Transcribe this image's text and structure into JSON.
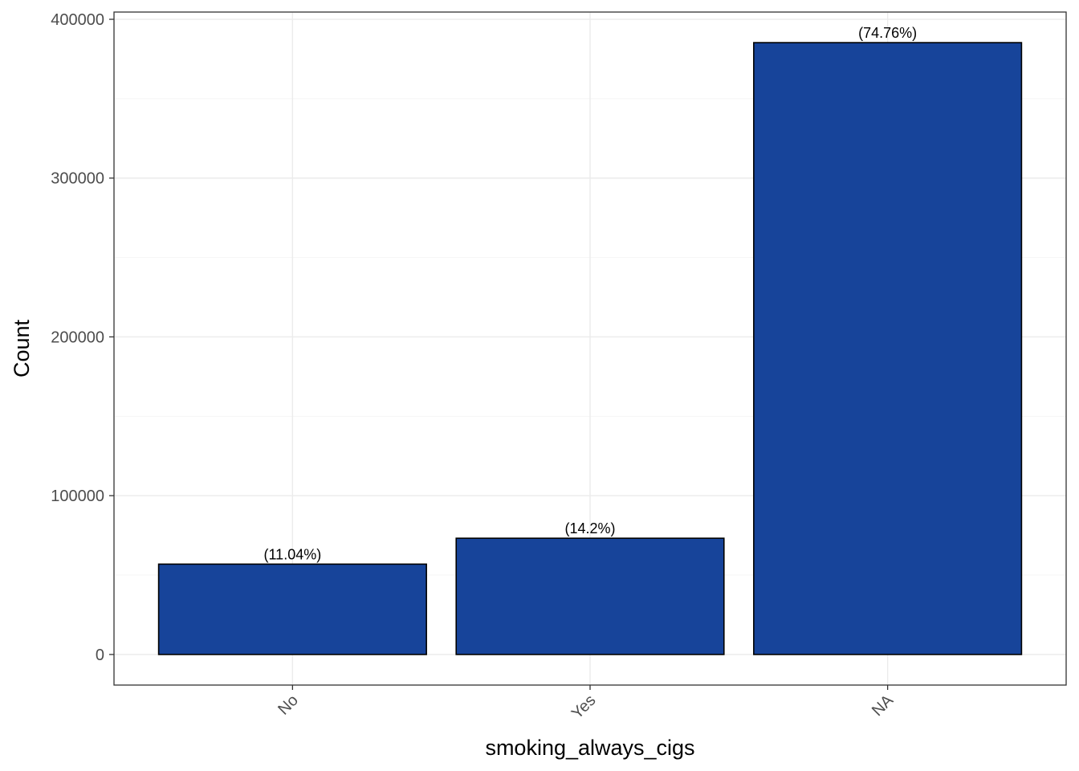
{
  "chart_data": {
    "type": "bar",
    "title": "",
    "xlabel": "smoking_always_cigs",
    "ylabel": "Count",
    "categories": [
      "No",
      "Yes",
      "NA"
    ],
    "values": [
      56900,
      73200,
      385300
    ],
    "data_labels": [
      "(11.04%)",
      "(14.2%)",
      "(74.76%)"
    ],
    "ylim": [
      -19265,
      404565
    ],
    "yticks": [
      0,
      100000,
      200000,
      300000,
      400000
    ],
    "ytick_labels": [
      "0",
      "100000",
      "200000",
      "300000",
      "400000"
    ],
    "grid": true,
    "legend": "none",
    "x_tick_rotation_deg": -45
  },
  "colors": {
    "bar_fill": "#17449A",
    "bar_stroke": "#000000",
    "grid_major": "#EBEBEB",
    "grid_minor": "#F5F5F5",
    "panel_border": "#333333",
    "background": "#FFFFFF"
  }
}
